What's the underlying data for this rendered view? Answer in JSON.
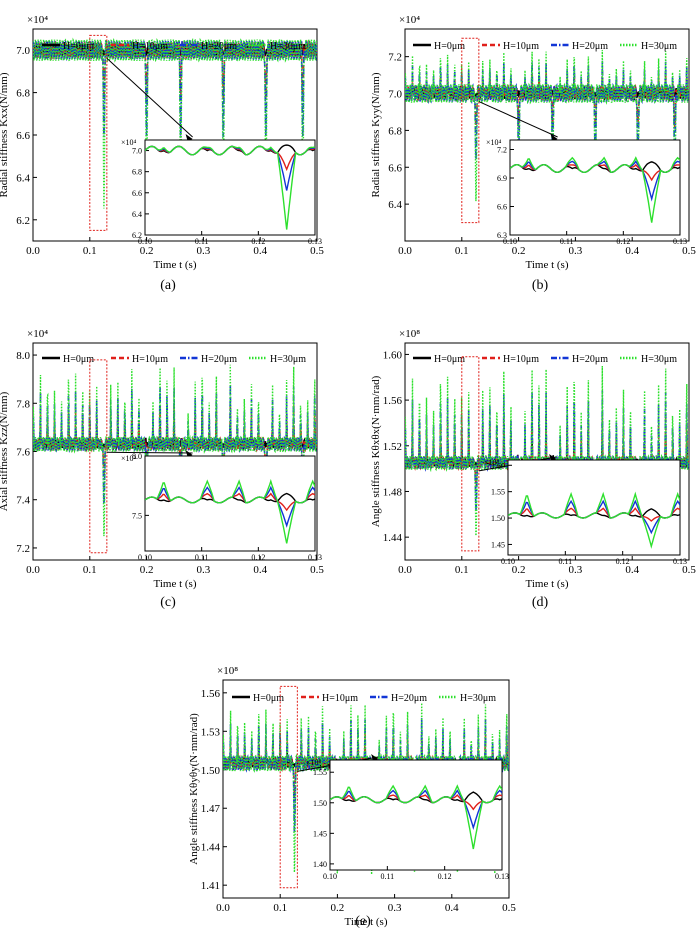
{
  "figure": {
    "legend": [
      {
        "label": "H=0μm",
        "color": "#000000",
        "dash": "solid"
      },
      {
        "label": "H=10μm",
        "color": "#e0201b",
        "dash": "dash"
      },
      {
        "label": "H=20μm",
        "color": "#1236d6",
        "dash": "dashdot"
      },
      {
        "label": "H=30μm",
        "color": "#2ee02e",
        "dash": "dot"
      }
    ],
    "xlabel": "Time t (s)"
  },
  "chart_data": [
    {
      "type": "line",
      "panel_label": "(a)",
      "ylabel": "Radial stiffness Kxx(N/mm)",
      "exponent_label": "×10⁴",
      "xlim": [
        0,
        0.5
      ],
      "ylim": [
        6.1,
        7.1
      ],
      "xticks": [
        "0.0",
        "0.1",
        "0.2",
        "0.3",
        "0.4",
        "0.5"
      ],
      "yticks": [
        "6.2",
        "6.4",
        "6.6",
        "6.8",
        "7.0"
      ],
      "baseline": 7.0,
      "osc_amp": 0.05,
      "osc_cycles": 210,
      "dip_times": [
        0.125,
        0.2,
        0.26,
        0.335,
        0.41,
        0.475
      ],
      "dip_min": {
        "H=0μm": 6.98,
        "H=10μm": 6.75,
        "H=20μm": 6.55,
        "H=30μm": 6.18
      },
      "highlight": {
        "x": [
          0.1,
          0.13
        ],
        "y": [
          6.15,
          7.07
        ]
      },
      "inset": {
        "xlim": [
          0.1,
          0.13
        ],
        "ylim": [
          6.2,
          7.1
        ],
        "xticks": [
          "0.10",
          "0.11",
          "0.12",
          "0.13"
        ],
        "yticks": [
          "6.2",
          "6.4",
          "6.6",
          "6.8",
          "7.0"
        ],
        "exponent_label": "×10⁴"
      }
    },
    {
      "type": "line",
      "panel_label": "(b)",
      "ylabel": "Radial stiffness Kyy(N/mm)",
      "exponent_label": "×10⁴",
      "xlim": [
        0,
        0.5
      ],
      "ylim": [
        6.2,
        7.35
      ],
      "xticks": [
        "0.0",
        "0.1",
        "0.2",
        "0.3",
        "0.4",
        "0.5"
      ],
      "yticks": [
        "6.4",
        "6.6",
        "6.8",
        "7.0",
        "7.2"
      ],
      "baseline": 7.0,
      "osc_amp": 0.05,
      "spike_max": 7.25,
      "osc_cycles": 210,
      "dip_times": [
        0.125,
        0.2,
        0.26,
        0.335,
        0.41,
        0.475
      ],
      "dip_min": {
        "H=0μm": 6.99,
        "H=10μm": 6.8,
        "H=20μm": 6.6,
        "H=30μm": 6.35
      },
      "highlight": {
        "x": [
          0.1,
          0.13
        ],
        "y": [
          6.3,
          7.3
        ]
      },
      "inset": {
        "xlim": [
          0.1,
          0.13
        ],
        "ylim": [
          6.3,
          7.3
        ],
        "xticks": [
          "0.10",
          "0.11",
          "0.12",
          "0.13"
        ],
        "yticks": [
          "6.3",
          "6.6",
          "6.9",
          "7.2"
        ],
        "exponent_label": "×10⁴"
      }
    },
    {
      "type": "line",
      "panel_label": "(c)",
      "ylabel": "Axial stiffness Kzz(N/mm)",
      "exponent_label": "×10⁴",
      "xlim": [
        0,
        0.5
      ],
      "ylim": [
        7.15,
        8.05
      ],
      "xticks": [
        "0.0",
        "0.1",
        "0.2",
        "0.3",
        "0.4",
        "0.5"
      ],
      "yticks": [
        "7.2",
        "7.4",
        "7.6",
        "7.8",
        "8.0"
      ],
      "baseline": 7.63,
      "osc_amp": 0.03,
      "spike_max": 7.98,
      "osc_cycles": 210,
      "dip_times": [
        0.125,
        0.2,
        0.26,
        0.335,
        0.41,
        0.475
      ],
      "dip_min": {
        "H=0μm": 7.62,
        "H=10μm": 7.48,
        "H=20μm": 7.35,
        "H=30μm": 7.2
      },
      "highlight": {
        "x": [
          0.1,
          0.13
        ],
        "y": [
          7.18,
          7.98
        ]
      },
      "inset": {
        "xlim": [
          0.1,
          0.13
        ],
        "ylim": [
          7.2,
          8.0
        ],
        "xticks": [
          "0.10",
          "0.11",
          "0.12",
          "0.13"
        ],
        "yticks": [
          "7.5",
          "8.0"
        ],
        "exponent_label": "×10⁴"
      }
    },
    {
      "type": "line",
      "panel_label": "(d)",
      "ylabel": "Angle stiffness Kθxθx(N·mm/rad)",
      "exponent_label": "×10⁸",
      "xlim": [
        0,
        0.5
      ],
      "ylim": [
        1.42,
        1.61
      ],
      "xticks": [
        "0.0",
        "0.1",
        "0.2",
        "0.3",
        "0.4",
        "0.5"
      ],
      "yticks": [
        "1.44",
        "1.48",
        "1.52",
        "1.56",
        "1.60"
      ],
      "baseline": 1.505,
      "osc_amp": 0.006,
      "spike_max": 1.595,
      "osc_cycles": 210,
      "dip_times": [
        0.125,
        0.2,
        0.26,
        0.335,
        0.41,
        0.475
      ],
      "dip_min": {
        "H=0μm": 1.503,
        "H=10μm": 1.48,
        "H=20μm": 1.458,
        "H=30μm": 1.432
      },
      "highlight": {
        "x": [
          0.1,
          0.13
        ],
        "y": [
          1.428,
          1.598
        ]
      },
      "inset": {
        "xlim": [
          0.1,
          0.13
        ],
        "ylim": [
          1.43,
          1.61
        ],
        "xticks": [
          "0.10",
          "0.11",
          "0.12",
          "0.13"
        ],
        "yticks": [
          "1.45",
          "1.50",
          "1.55",
          "1.60"
        ],
        "exponent_label": "×10⁸"
      }
    },
    {
      "type": "line",
      "panel_label": "(e)",
      "ylabel": "Angle stiffness Kθyθy(N·mm/rad)",
      "exponent_label": "×10⁸",
      "xlim": [
        0,
        0.5
      ],
      "ylim": [
        1.4,
        1.57
      ],
      "xticks": [
        "0.0",
        "0.1",
        "0.2",
        "0.3",
        "0.4",
        "0.5"
      ],
      "yticks": [
        "1.41",
        "1.44",
        "1.47",
        "1.50",
        "1.53",
        "1.56"
      ],
      "baseline": 1.505,
      "osc_amp": 0.006,
      "spike_max": 1.555,
      "osc_cycles": 210,
      "dip_times": [
        0.125,
        0.2,
        0.26,
        0.335,
        0.41,
        0.475
      ],
      "dip_min": {
        "H=0μm": 1.503,
        "H=10μm": 1.475,
        "H=20μm": 1.445,
        "H=30μm": 1.41
      },
      "highlight": {
        "x": [
          0.1,
          0.13
        ],
        "y": [
          1.408,
          1.565
        ]
      },
      "inset": {
        "xlim": [
          0.1,
          0.13
        ],
        "ylim": [
          1.39,
          1.57
        ],
        "xticks": [
          "0.10",
          "0.11",
          "0.12",
          "0.13"
        ],
        "yticks": [
          "1.40",
          "1.45",
          "1.50",
          "1.55"
        ],
        "exponent_label": "×10⁸"
      }
    }
  ]
}
